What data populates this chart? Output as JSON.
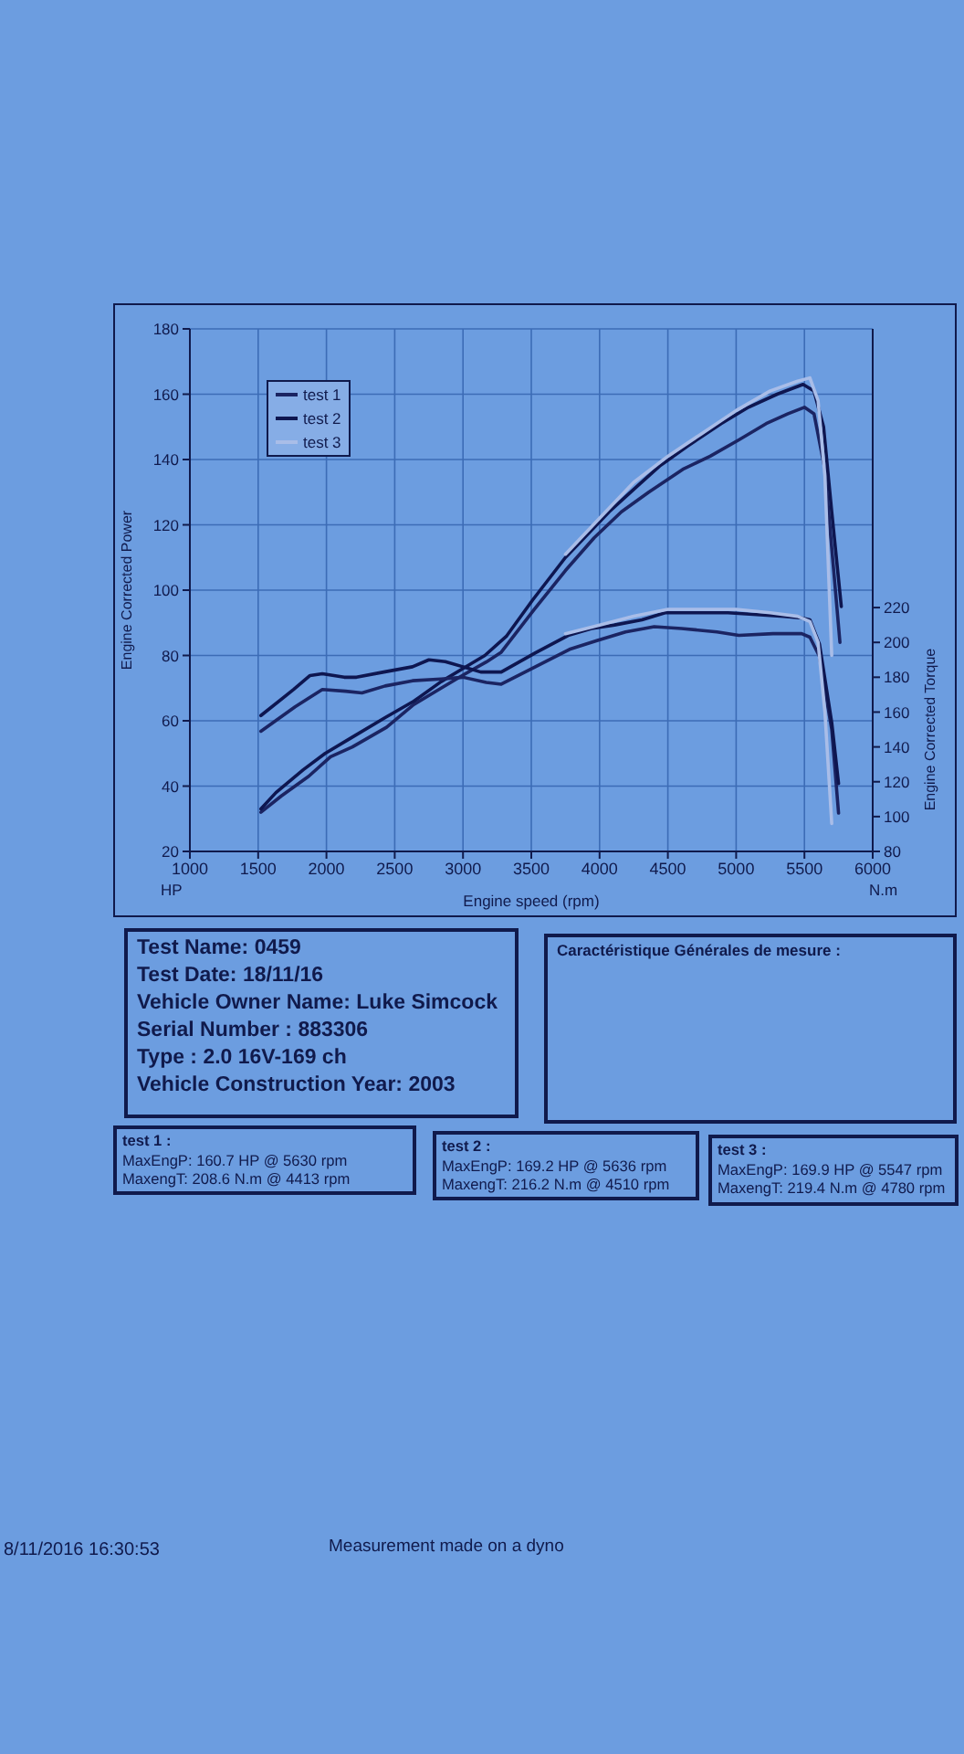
{
  "chart_data": {
    "type": "line",
    "xlabel": "Engine speed (rpm)",
    "ylabel": "Engine Corrected Power",
    "y2label": "Engine Corrected Torque",
    "xlim": [
      1000,
      6000
    ],
    "xticks": [
      1000,
      1500,
      2000,
      2500,
      3000,
      3500,
      4000,
      4500,
      5000,
      5500,
      6000
    ],
    "ylim": [
      20,
      180
    ],
    "yticks": [
      20,
      40,
      60,
      80,
      100,
      120,
      140,
      160,
      180
    ],
    "y2lim": [
      80,
      380
    ],
    "y2ticks": [
      80,
      100,
      120,
      140,
      160,
      180,
      200,
      220
    ],
    "grid": true,
    "legend": "top left",
    "marker": "none",
    "line_style": "solid",
    "series": [
      {
        "name": "test 1",
        "color": "#1b2462",
        "x": [
          1520,
          1670,
          1870,
          2030,
          2190,
          2440,
          2640,
          2840,
          3000,
          3170,
          3280,
          3520,
          3750,
          3960,
          4160,
          4360,
          4610,
          4810,
          5020,
          5220,
          5380,
          5500,
          5570,
          5650,
          5760
        ],
        "values": [
          32,
          37,
          43,
          49,
          52,
          58,
          65,
          70,
          74,
          78,
          81,
          94,
          106,
          116,
          124,
          130,
          137,
          141,
          146,
          151,
          154,
          156,
          154,
          137,
          84
        ]
      },
      {
        "name": "test 2",
        "color": "#0e1650",
        "x": [
          1520,
          1630,
          1830,
          1990,
          2190,
          2430,
          2640,
          2840,
          3000,
          3160,
          3320,
          3510,
          3750,
          3910,
          4070,
          4280,
          4440,
          4640,
          4890,
          5090,
          5300,
          5490,
          5570,
          5640,
          5700,
          5770
        ],
        "values": [
          33,
          38,
          45,
          50,
          55,
          61,
          66,
          72,
          76,
          80,
          86,
          97,
          110,
          117,
          124,
          132,
          138,
          144,
          151,
          156,
          160,
          163,
          161,
          150,
          124,
          95
        ]
      },
      {
        "name": "test 3",
        "color": "#a9bde8",
        "x": [
          3750,
          4000,
          4250,
          4500,
          4750,
          5000,
          5250,
          5450,
          5540,
          5600,
          5650,
          5700
        ],
        "values": [
          111,
          122,
          133,
          141,
          148,
          155,
          161,
          164,
          165,
          158,
          135,
          80
        ]
      },
      {
        "color": "#1b2462",
        "axis": "y2",
        "x": [
          1520,
          1770,
          1970,
          2140,
          2260,
          2430,
          2630,
          2840,
          3000,
          3170,
          3280,
          3530,
          3780,
          3980,
          4190,
          4400,
          4600,
          4860,
          5020,
          5270,
          5480,
          5540,
          5610,
          5700,
          5750
        ],
        "values": [
          149,
          163,
          173,
          172,
          171,
          175,
          178,
          179,
          180,
          177,
          176,
          186,
          196,
          201,
          206,
          209,
          208,
          206,
          204,
          205,
          205,
          203,
          192,
          150,
          102
        ]
      },
      {
        "color": "#0e1650",
        "axis": "y2",
        "x": [
          1520,
          1760,
          1880,
          1970,
          2130,
          2220,
          2420,
          2630,
          2750,
          2870,
          3000,
          3130,
          3280,
          3530,
          3770,
          3940,
          4110,
          4310,
          4480,
          4730,
          4940,
          5150,
          5350,
          5480,
          5540,
          5610,
          5700,
          5750
        ],
        "values": [
          158,
          173,
          181,
          182,
          180,
          180,
          183,
          186,
          190,
          189,
          186,
          183,
          183,
          194,
          204,
          208,
          210,
          213,
          217,
          217,
          217,
          216,
          215,
          214,
          213,
          199,
          154,
          119
        ]
      },
      {
        "color": "#a9bde8",
        "axis": "y2",
        "x": [
          3750,
          4000,
          4250,
          4500,
          4750,
          5000,
          5250,
          5450,
          5540,
          5600,
          5650,
          5700
        ],
        "values": [
          205,
          210,
          215,
          219,
          219,
          219,
          217,
          215,
          212,
          200,
          160,
          96
        ]
      }
    ],
    "annotations": [
      "HP",
      "N.m",
      "Test Name: 0459",
      "Test Date: 18/11/16",
      "Vehicle Owner Name: Luke Simcock",
      "Serial Number  : 883306",
      "Type  : 2.0 16V-169 ch",
      "Vehicle Construction Year: 2003",
      "Caractéristique Générales de mesure :",
      "test 1 :",
      "MaxEngP: 160.7 HP @ 5630 rpm",
      "MaxengT: 208.6 N.m @ 4413 rpm",
      "test 2 :",
      "MaxEngP: 169.2 HP @ 5636 rpm",
      "MaxengT: 216.2 N.m @ 4510 rpm",
      "test 3 :",
      "MaxEngP: 169.9 HP @ 5547 rpm",
      "MaxengT: 219.4 N.m @ 4780 rpm",
      "8/11/2016 16:30:53",
      "Measurement made on a dyno"
    ]
  }
}
